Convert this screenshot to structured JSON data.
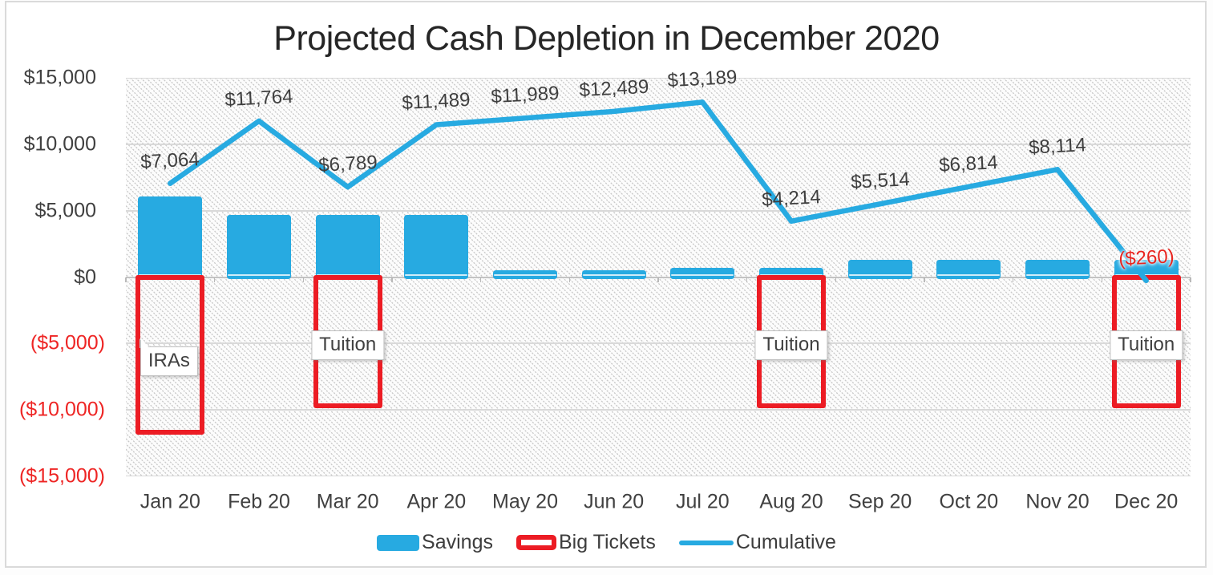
{
  "title": "Projected Cash Depletion in December 2020",
  "chart_data": {
    "type": "bar",
    "title": "Projected Cash Depletion in December 2020",
    "categories": [
      "Jan 20",
      "Feb 20",
      "Mar 20",
      "Apr 20",
      "May 20",
      "Jun 20",
      "Jul 20",
      "Aug 20",
      "Sep 20",
      "Oct 20",
      "Nov 20",
      "Dec 20"
    ],
    "series": [
      {
        "name": "Savings",
        "type": "bar",
        "color": "#27aae1",
        "values": [
          6064,
          4700,
          4700,
          4700,
          500,
          500,
          700,
          700,
          1300,
          1300,
          1300,
          1300
        ]
      },
      {
        "name": "Big Tickets",
        "type": "bar-outline",
        "color": "#ec1c24",
        "values": [
          -11700,
          null,
          -9675,
          null,
          null,
          null,
          null,
          -9675,
          null,
          null,
          null,
          -9675
        ],
        "point_labels": [
          "IRAs",
          null,
          "Tuition",
          null,
          null,
          null,
          null,
          "Tuition",
          null,
          null,
          null,
          "Tuition"
        ]
      },
      {
        "name": "Cumulative",
        "type": "line",
        "color": "#27aae1",
        "values": [
          7064,
          11764,
          6789,
          11489,
          11989,
          12489,
          13189,
          4214,
          5514,
          6814,
          8114,
          -260
        ],
        "point_labels": [
          "$7,064",
          "$11,764",
          "$6,789",
          "$11,489",
          "$11,989",
          "$12,489",
          "$13,189",
          "$4,214",
          "$5,514",
          "$6,814",
          "$8,114",
          "($260)"
        ]
      }
    ],
    "xlabel": "",
    "ylabel": "",
    "ylim": [
      -15000,
      15000
    ],
    "ytick_step": 5000,
    "ytick_labels": [
      "$15,000",
      "$10,000",
      "$5,000",
      "$0",
      "($5,000)",
      "($10,000)",
      "($15,000)"
    ],
    "grid": "horizontal",
    "legend_position": "bottom",
    "plot_background": "diagonal-hatch"
  },
  "colors": {
    "savings_bar": "#27aae1",
    "big_tickets_outline": "#ec1c24",
    "cumulative_line": "#27aae1",
    "negative_axis_label": "#ee2524",
    "axis_label": "#404040",
    "gridline": "#d9d9d9",
    "title_text": "#262626"
  }
}
